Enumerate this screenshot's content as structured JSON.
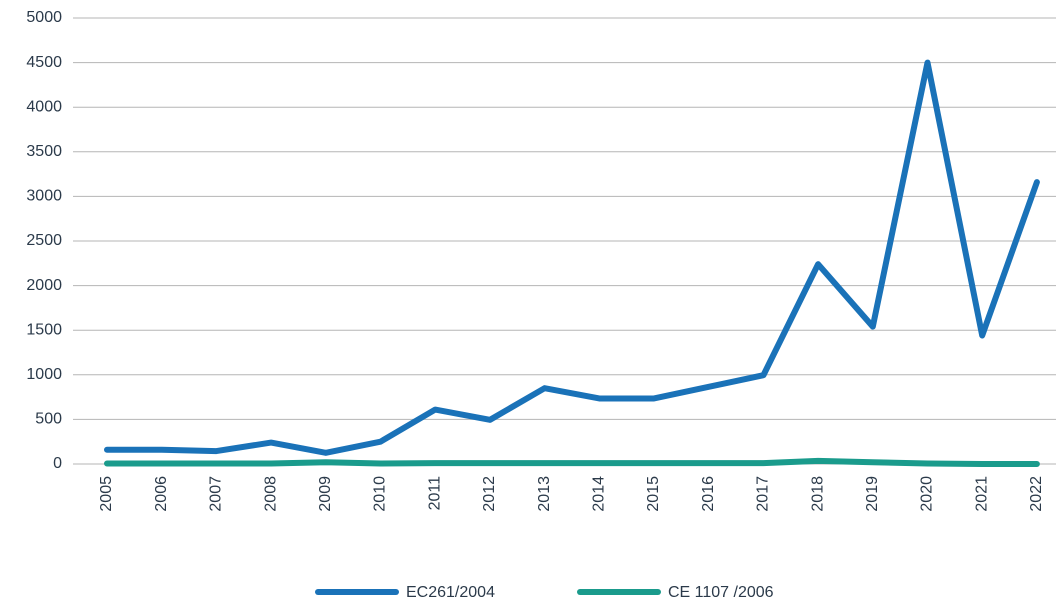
{
  "chart_data": {
    "type": "line",
    "categories": [
      "2005",
      "2006",
      "2007",
      "2008",
      "2009",
      "2010",
      "2011",
      "2012",
      "2013",
      "2014",
      "2015",
      "2016",
      "2017",
      "2018",
      "2019",
      "2020",
      "2021",
      "2022"
    ],
    "series": [
      {
        "name": "EC261/2004",
        "color": "#1a72b8",
        "values": [
          160,
          160,
          145,
          240,
          125,
          250,
          610,
          495,
          850,
          735,
          735,
          865,
          995,
          2240,
          1540,
          4500,
          1440,
          3160
        ]
      },
      {
        "name": "CE 1107 /2006",
        "color": "#1a9b8c",
        "values": [
          5,
          5,
          5,
          5,
          20,
          5,
          10,
          10,
          10,
          10,
          10,
          10,
          10,
          35,
          20,
          5,
          0,
          0
        ]
      }
    ],
    "ylim": [
      0,
      5000
    ],
    "yticks": [
      0,
      500,
      1000,
      1500,
      2000,
      2500,
      3000,
      3500,
      4000,
      4500,
      5000
    ],
    "grid": true,
    "legend": "bottom"
  }
}
